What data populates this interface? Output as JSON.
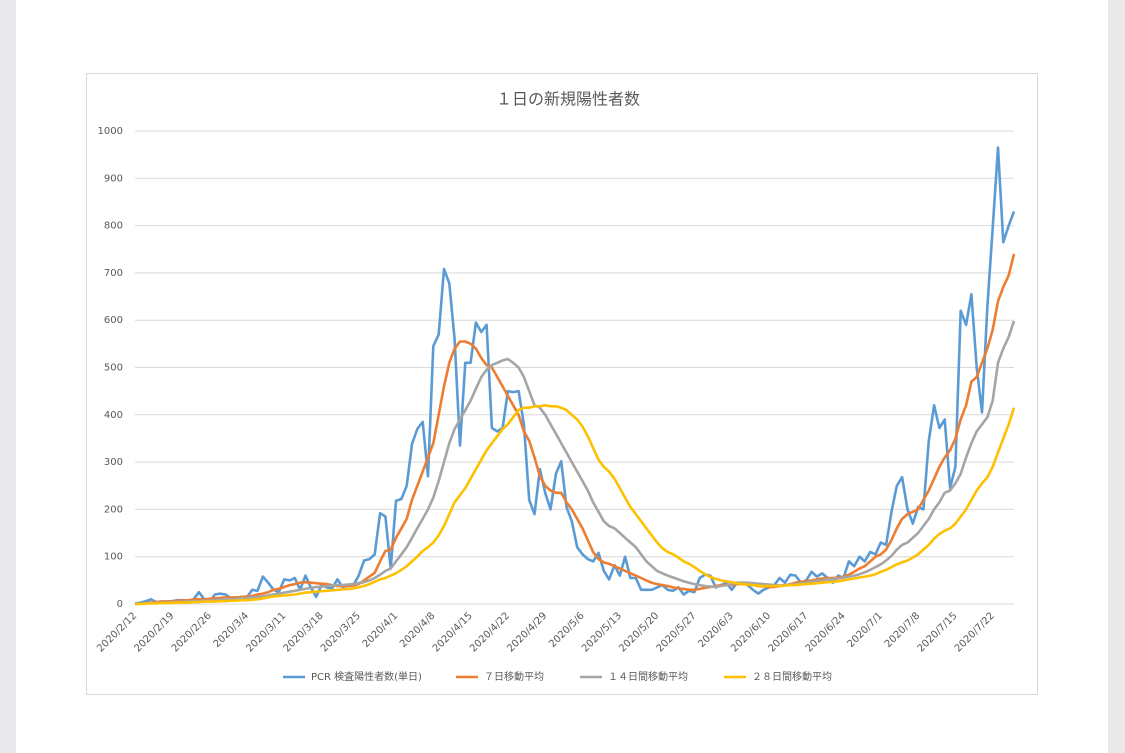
{
  "chart_data": {
    "type": "line",
    "title": "１日の新規陽性者数",
    "categories": [
      "2020/2/12",
      null,
      null,
      null,
      null,
      null,
      null,
      "2020/2/19",
      null,
      null,
      null,
      null,
      null,
      null,
      "2020/2/26",
      null,
      null,
      null,
      null,
      null,
      null,
      "2020/3/4",
      null,
      null,
      null,
      null,
      null,
      null,
      "2020/3/11",
      null,
      null,
      null,
      null,
      null,
      null,
      "2020/3/18",
      null,
      null,
      null,
      null,
      null,
      null,
      "2020/3/25",
      null,
      null,
      null,
      null,
      null,
      null,
      "2020/4/1",
      null,
      null,
      null,
      null,
      null,
      null,
      "2020/4/8",
      null,
      null,
      null,
      null,
      null,
      null,
      "2020/4/15",
      null,
      null,
      null,
      null,
      null,
      null,
      "2020/4/22",
      null,
      null,
      null,
      null,
      null,
      null,
      "2020/4/29",
      null,
      null,
      null,
      null,
      null,
      null,
      "2020/5/6",
      null,
      null,
      null,
      null,
      null,
      null,
      "2020/5/13",
      null,
      null,
      null,
      null,
      null,
      null,
      "2020/5/20",
      null,
      null,
      null,
      null,
      null,
      null,
      "2020/5/27",
      null,
      null,
      null,
      null,
      null,
      null,
      "2020/6/3",
      null,
      null,
      null,
      null,
      null,
      null,
      "2020/6/10",
      null,
      null,
      null,
      null,
      null,
      null,
      "2020/6/17",
      null,
      null,
      null,
      null,
      null,
      null,
      "2020/6/24",
      null,
      null,
      null,
      null,
      null,
      null,
      "2020/7/1",
      null,
      null,
      null,
      null,
      null,
      null,
      "2020/7/8",
      null,
      null,
      null,
      null,
      null,
      null,
      "2020/7/15",
      null,
      null,
      null,
      null,
      null,
      null,
      "2020/7/22",
      null,
      null,
      null,
      null
    ],
    "series": [
      {
        "name": "PCR 検査陽性者数(単日)",
        "color": "#5b9bd5",
        "values": [
          1,
          3,
          6,
          10,
          4,
          5,
          5,
          6,
          8,
          8,
          7,
          10,
          25,
          10,
          5,
          20,
          22,
          20,
          12,
          14,
          12,
          14,
          30,
          28,
          58,
          45,
          30,
          25,
          52,
          50,
          55,
          30,
          60,
          35,
          15,
          40,
          35,
          33,
          52,
          35,
          40,
          40,
          60,
          92,
          95,
          105,
          192,
          185,
          75,
          218,
          222,
          250,
          338,
          370,
          385,
          270,
          545,
          570,
          708,
          678,
          560,
          335,
          510,
          510,
          595,
          575,
          590,
          372,
          365,
          372,
          450,
          448,
          450,
          380,
          220,
          190,
          285,
          235,
          200,
          275,
          302,
          205,
          175,
          120,
          105,
          95,
          90,
          108,
          70,
          52,
          82,
          60,
          100,
          55,
          55,
          30,
          30,
          30,
          35,
          40,
          30,
          28,
          35,
          20,
          28,
          25,
          55,
          62,
          60,
          35,
          40,
          45,
          30,
          45,
          45,
          40,
          30,
          22,
          30,
          35,
          40,
          55,
          45,
          62,
          60,
          45,
          50,
          68,
          58,
          65,
          55,
          45,
          60,
          55,
          90,
          80,
          100,
          90,
          110,
          105,
          130,
          125,
          195,
          250,
          268,
          200,
          170,
          205,
          200,
          345,
          420,
          372,
          390,
          245,
          290,
          620,
          590,
          655,
          500,
          405,
          630,
          795,
          965,
          765,
          800,
          830
        ]
      },
      {
        "name": "７日移動平均",
        "color": "#ed7d31",
        "values": [
          0,
          1,
          2,
          3,
          4,
          5,
          5,
          6,
          7,
          7,
          8,
          9,
          10,
          10,
          11,
          12,
          13,
          14,
          14,
          14,
          15,
          16,
          17,
          20,
          22,
          25,
          30,
          32,
          36,
          40,
          42,
          45,
          46,
          45,
          44,
          43,
          42,
          40,
          38,
          38,
          38,
          39,
          42,
          50,
          58,
          66,
          90,
          112,
          115,
          140,
          160,
          180,
          220,
          250,
          280,
          310,
          340,
          400,
          460,
          510,
          540,
          555,
          555,
          550,
          540,
          520,
          505,
          500,
          480,
          460,
          440,
          420,
          400,
          365,
          345,
          310,
          270,
          250,
          240,
          235,
          235,
          215,
          200,
          180,
          160,
          135,
          110,
          95,
          88,
          85,
          80,
          75,
          70,
          65,
          60,
          55,
          50,
          45,
          42,
          40,
          38,
          35,
          33,
          32,
          30,
          30,
          32,
          34,
          36,
          38,
          40,
          40,
          40,
          42,
          42,
          41,
          40,
          38,
          37,
          36,
          36,
          38,
          40,
          42,
          45,
          47,
          48,
          50,
          52,
          54,
          55,
          55,
          56,
          58,
          62,
          68,
          75,
          80,
          90,
          100,
          105,
          115,
          135,
          160,
          180,
          190,
          195,
          200,
          220,
          240,
          265,
          290,
          310,
          325,
          350,
          390,
          420,
          470,
          480,
          510,
          540,
          580,
          640,
          670,
          695,
          740
        ]
      },
      {
        "name": "１４日間移動平均",
        "color": "#a5a5a5",
        "values": [
          0,
          1,
          1,
          2,
          2,
          3,
          3,
          4,
          4,
          5,
          5,
          6,
          6,
          7,
          7,
          8,
          9,
          10,
          10,
          11,
          12,
          13,
          14,
          15,
          16,
          18,
          20,
          22,
          24,
          26,
          28,
          30,
          32,
          34,
          36,
          37,
          38,
          39,
          40,
          40,
          41,
          42,
          44,
          46,
          50,
          55,
          62,
          70,
          75,
          90,
          105,
          120,
          140,
          160,
          180,
          200,
          225,
          260,
          300,
          340,
          370,
          390,
          410,
          430,
          455,
          480,
          495,
          505,
          510,
          515,
          518,
          510,
          500,
          480,
          450,
          420,
          415,
          400,
          380,
          360,
          340,
          320,
          300,
          280,
          260,
          240,
          215,
          195,
          175,
          165,
          160,
          150,
          140,
          130,
          120,
          105,
          90,
          80,
          70,
          65,
          60,
          56,
          52,
          48,
          45,
          42,
          40,
          38,
          37,
          36,
          38,
          40,
          42,
          44,
          45,
          45,
          44,
          43,
          42,
          41,
          40,
          39,
          40,
          41,
          42,
          44,
          45,
          47,
          49,
          50,
          52,
          53,
          54,
          56,
          58,
          60,
          63,
          67,
          72,
          78,
          84,
          92,
          102,
          115,
          125,
          130,
          140,
          150,
          165,
          180,
          200,
          215,
          235,
          240,
          255,
          275,
          310,
          340,
          365,
          380,
          395,
          430,
          510,
          540,
          565,
          598
        ]
      },
      {
        "name": "２８日間移動平均",
        "color": "#ffc000",
        "values": [
          0,
          0,
          1,
          1,
          1,
          2,
          2,
          2,
          3,
          3,
          3,
          4,
          4,
          5,
          5,
          5,
          6,
          6,
          7,
          7,
          8,
          8,
          9,
          10,
          12,
          14,
          16,
          17,
          18,
          19,
          20,
          22,
          24,
          25,
          26,
          27,
          28,
          29,
          30,
          31,
          32,
          33,
          35,
          38,
          42,
          47,
          52,
          55,
          60,
          65,
          72,
          80,
          90,
          100,
          112,
          120,
          130,
          145,
          165,
          190,
          215,
          230,
          245,
          265,
          285,
          305,
          325,
          340,
          355,
          370,
          380,
          395,
          410,
          415,
          415,
          418,
          418,
          420,
          418,
          418,
          415,
          410,
          400,
          390,
          375,
          355,
          330,
          305,
          290,
          280,
          265,
          245,
          225,
          205,
          190,
          175,
          160,
          145,
          130,
          118,
          110,
          105,
          98,
          90,
          85,
          78,
          70,
          63,
          57,
          53,
          50,
          48,
          46,
          44,
          42,
          41,
          40,
          39,
          38,
          38,
          38,
          38,
          39,
          40,
          40,
          41,
          42,
          43,
          44,
          45,
          46,
          47,
          48,
          50,
          52,
          54,
          56,
          58,
          60,
          63,
          68,
          72,
          78,
          84,
          88,
          92,
          98,
          105,
          115,
          125,
          138,
          148,
          155,
          160,
          170,
          185,
          200,
          220,
          240,
          255,
          268,
          290,
          320,
          350,
          380,
          415
        ]
      }
    ],
    "ylim": [
      0,
      1000
    ],
    "yticks": [
      0,
      100,
      200,
      300,
      400,
      500,
      600,
      700,
      800,
      900,
      1000
    ],
    "grid": true,
    "legend": "bottom"
  }
}
